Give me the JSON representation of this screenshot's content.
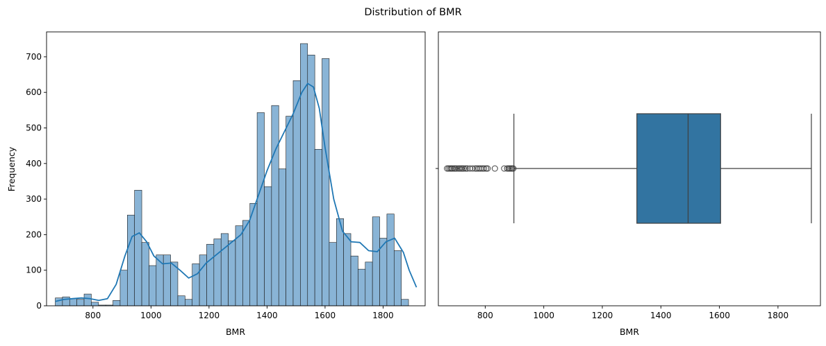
{
  "figure": {
    "suptitle": "Distribution of BMR"
  },
  "colors": {
    "hist_fill": "#89b4d6",
    "hist_edge": "#1a1a1a",
    "kde_line": "#1f77b4",
    "box_fill": "#3274a1",
    "box_line": "#3f3f3f",
    "axis": "#000000"
  },
  "chart_data": [
    {
      "type": "bar",
      "subtype": "histogram-with-kde",
      "title": "",
      "xlabel": "BMR",
      "ylabel": "Frequency",
      "xlim": [
        640,
        1945
      ],
      "ylim": [
        0,
        770
      ],
      "xticks": [
        800,
        1000,
        1200,
        1400,
        1600,
        1800
      ],
      "yticks": [
        0,
        100,
        200,
        300,
        400,
        500,
        600,
        700
      ],
      "bin_start": 670,
      "bin_width": 24.85,
      "counts": [
        22,
        25,
        20,
        18,
        33,
        10,
        2,
        2,
        15,
        100,
        255,
        325,
        178,
        113,
        143,
        143,
        123,
        28,
        18,
        118,
        143,
        173,
        188,
        203,
        183,
        225,
        240,
        288,
        543,
        335,
        563,
        385,
        533,
        633,
        737,
        705,
        440,
        695,
        178,
        245,
        203,
        140,
        103,
        123,
        250,
        190,
        258,
        155,
        18
      ],
      "kde": {
        "x": [
          670,
          700,
          730,
          760,
          790,
          820,
          850,
          880,
          910,
          935,
          960,
          985,
          1010,
          1040,
          1070,
          1100,
          1130,
          1160,
          1190,
          1220,
          1250,
          1280,
          1310,
          1340,
          1370,
          1400,
          1430,
          1460,
          1490,
          1520,
          1540,
          1560,
          1580,
          1600,
          1630,
          1660,
          1690,
          1720,
          1750,
          1780,
          1810,
          1840,
          1870,
          1890,
          1915
        ],
        "y": [
          12,
          18,
          20,
          22,
          20,
          15,
          20,
          60,
          140,
          195,
          205,
          180,
          140,
          118,
          120,
          100,
          78,
          90,
          120,
          140,
          160,
          180,
          200,
          240,
          310,
          380,
          440,
          490,
          540,
          600,
          625,
          615,
          555,
          445,
          300,
          210,
          180,
          178,
          155,
          152,
          180,
          190,
          150,
          100,
          52
        ]
      }
    },
    {
      "type": "box",
      "title": "",
      "xlabel": "BMR",
      "ylabel": "",
      "xlim": [
        640,
        1945
      ],
      "xticks": [
        800,
        1000,
        1200,
        1400,
        1600,
        1800
      ],
      "box": {
        "whisker_low": 898,
        "q1": 1318,
        "median": 1493,
        "q3": 1604,
        "whisker_high": 1914
      },
      "outliers": [
        670,
        675,
        680,
        684,
        688,
        693,
        697,
        702,
        708,
        713,
        718,
        722,
        727,
        733,
        739,
        748,
        757,
        766,
        772,
        778,
        784,
        790,
        796,
        803,
        808,
        833,
        865,
        875,
        880,
        884,
        888,
        892,
        896
      ]
    }
  ]
}
